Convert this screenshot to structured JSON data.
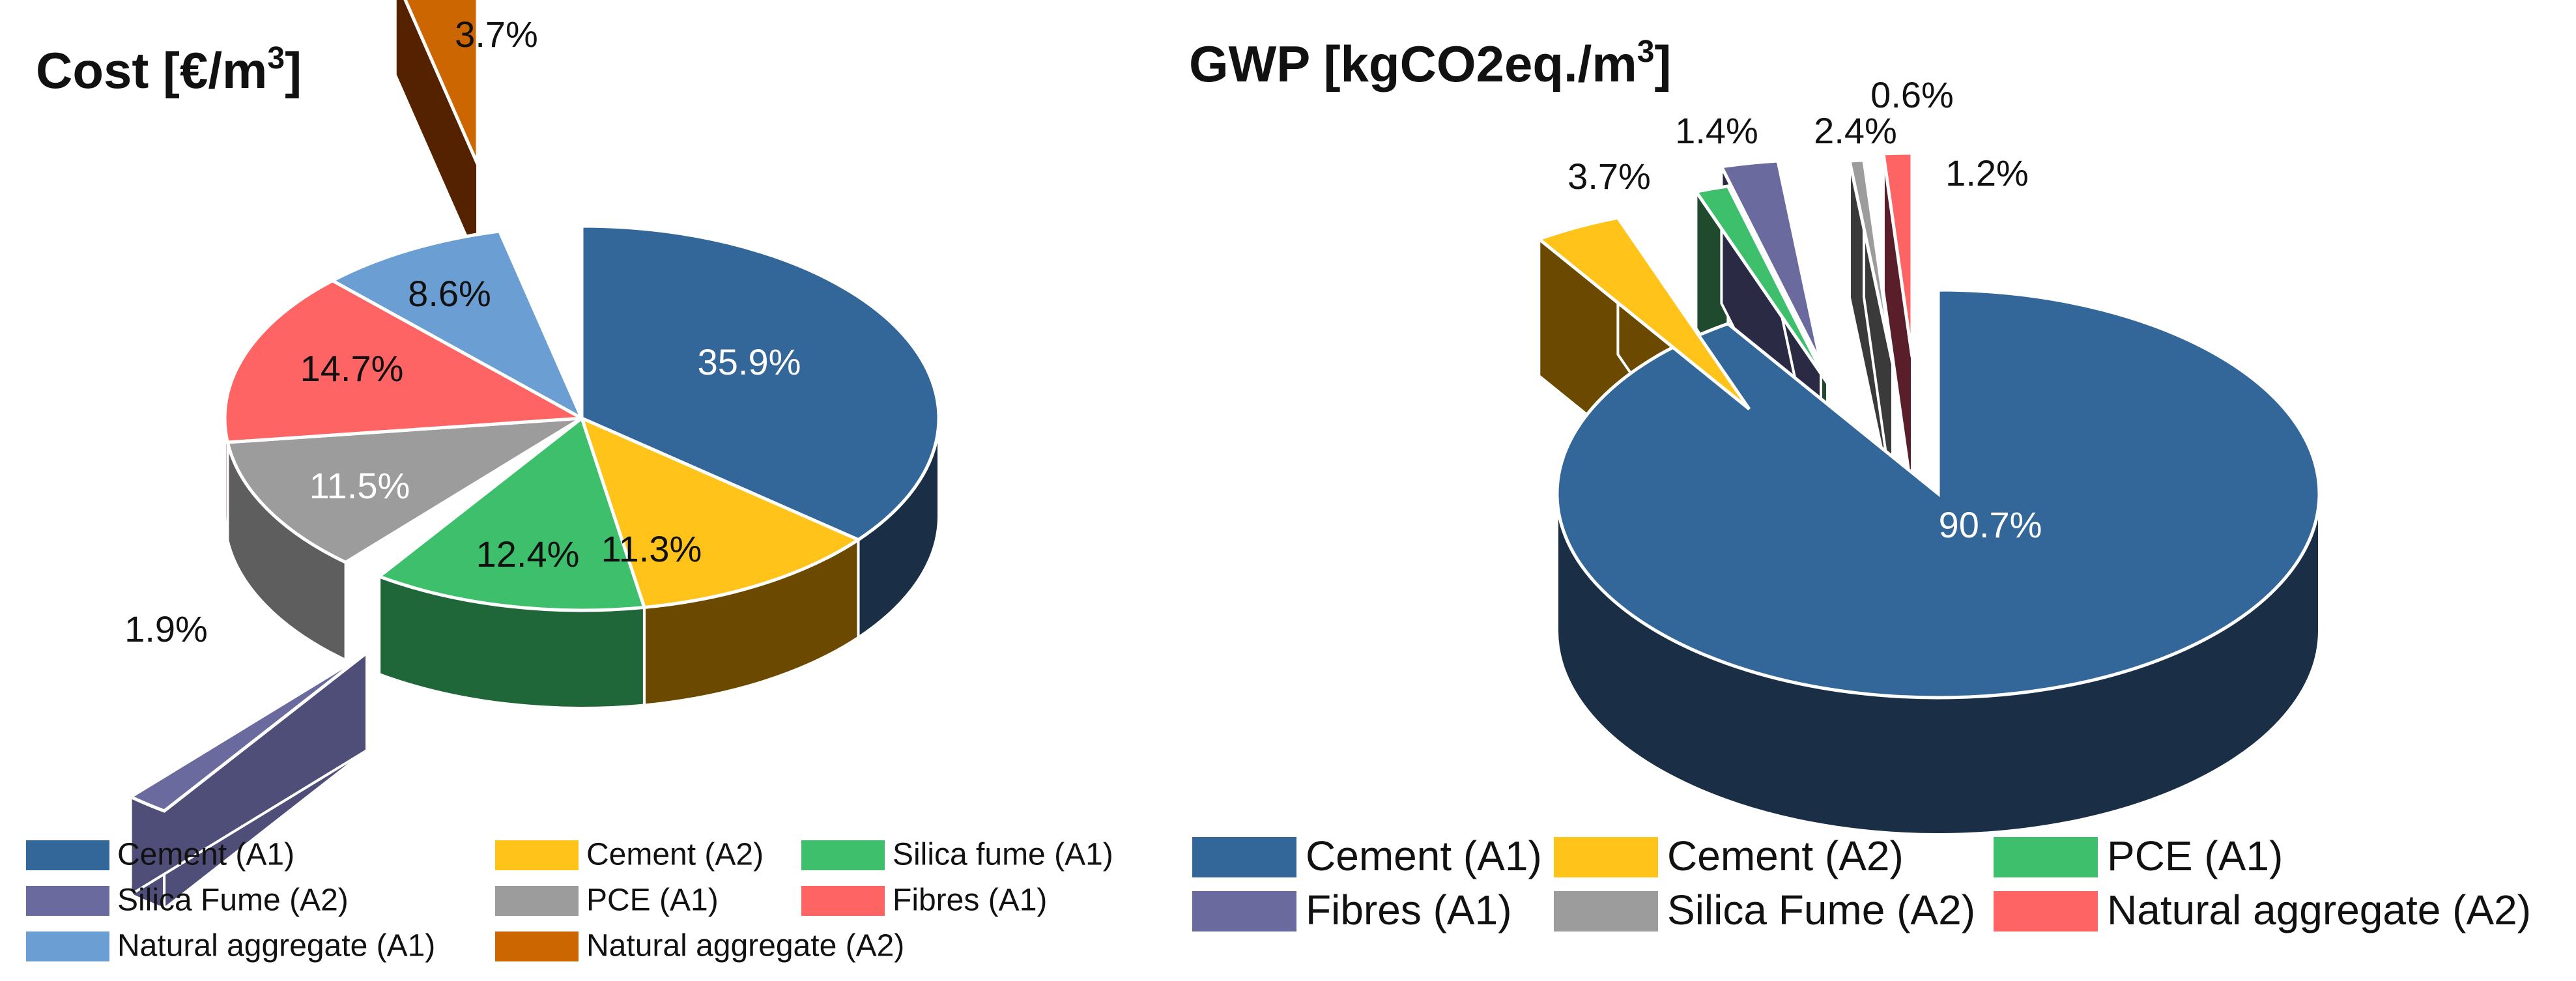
{
  "chart_data": [
    {
      "type": "pie",
      "title": "Cost [€/m",
      "title_superscript": "3",
      "title_suffix": "]",
      "slices": [
        {
          "name": "Cement (A1)",
          "value": 35.9,
          "label": "35.9%",
          "color": "#336699",
          "side_color": "#1a2e45",
          "text_color": "#ffffff"
        },
        {
          "name": "Cement (A2)",
          "value": 11.3,
          "label": "11.3%",
          "color": "#ffc31a",
          "side_color": "#6b4a00",
          "text_color": "#111111"
        },
        {
          "name": "Silica fume (A1)",
          "value": 12.4,
          "label": "12.4%",
          "color": "#3dbf6b",
          "side_color": "#1f6638",
          "text_color": "#111111"
        },
        {
          "name": "Silica Fume (A2)",
          "value": 1.9,
          "label": "1.9%",
          "color": "#6a6a9e",
          "side_color": "#4e4e78",
          "text_color": "#111111",
          "exploded": true
        },
        {
          "name": "PCE (A1)",
          "value": 11.5,
          "label": "11.5%",
          "color": "#9c9c9c",
          "side_color": "#5e5e5e",
          "text_color": "#ffffff"
        },
        {
          "name": "Fibres (A1)",
          "value": 14.7,
          "label": "14.7%",
          "color": "#ff6464",
          "side_color": "#993333",
          "text_color": "#111111"
        },
        {
          "name": "Natural aggregate (A1)",
          "value": 8.6,
          "label": "8.6%",
          "color": "#6b9fd4",
          "side_color": "#3d5f80",
          "text_color": "#111111"
        },
        {
          "name": "Natural aggregate (A2)",
          "value": 3.7,
          "label": "3.7%",
          "color": "#cc6600",
          "side_color": "#552200",
          "text_color": "#111111",
          "exploded": true
        }
      ],
      "legend": {
        "placement": "bottom",
        "items": [
          "Cement (A1)",
          "Cement (A2)",
          "Silica fume (A1)",
          "Silica Fume (A2)",
          "PCE (A1)",
          "Fibres (A1)",
          "Natural aggregate (A1)",
          "Natural aggregate (A2)"
        ],
        "colors": [
          "#336699",
          "#ffc31a",
          "#3dbf6b",
          "#6a6a9e",
          "#9c9c9c",
          "#ff6464",
          "#6b9fd4",
          "#cc6600"
        ]
      }
    },
    {
      "type": "pie",
      "title": "GWP [kgCO2eq./m",
      "title_superscript": "3",
      "title_suffix": "]",
      "slices": [
        {
          "name": "Cement (A1)",
          "value": 90.7,
          "label": "90.7%",
          "color": "#336699",
          "side_color": "#1a2e45",
          "text_color": "#ffffff"
        },
        {
          "name": "Cement (A2)",
          "value": 3.7,
          "label": "3.7%",
          "color": "#ffc31a",
          "side_color": "#6b4a00",
          "text_color": "#111111",
          "exploded": true
        },
        {
          "name": "PCE (A1)",
          "value": 1.4,
          "label": "1.4%",
          "color": "#3dbf6b",
          "side_color": "#1f4a2e",
          "text_color": "#111111",
          "exploded": true
        },
        {
          "name": "Fibres (A1)",
          "value": 2.4,
          "label": "2.4%",
          "color": "#6a6a9e",
          "side_color": "#2a2a44",
          "text_color": "#111111",
          "exploded": true
        },
        {
          "name": "Silica Fume (A2)",
          "value": 0.6,
          "label": "0.6%",
          "color": "#9c9c9c",
          "side_color": "#3a3a3a",
          "text_color": "#111111",
          "exploded": true
        },
        {
          "name": "Natural aggregate (A2)",
          "value": 1.2,
          "label": "1.2%",
          "color": "#ff6464",
          "side_color": "#5a1e2a",
          "text_color": "#111111",
          "exploded": true
        }
      ],
      "legend": {
        "placement": "bottom",
        "items": [
          "Cement (A1)",
          "Cement (A2)",
          "PCE (A1)",
          "Fibres (A1)",
          "Silica Fume (A2)",
          "Natural aggregate (A2)"
        ],
        "colors": [
          "#336699",
          "#ffc31a",
          "#3dbf6b",
          "#6a6a9e",
          "#9c9c9c",
          "#ff6464"
        ]
      }
    }
  ]
}
